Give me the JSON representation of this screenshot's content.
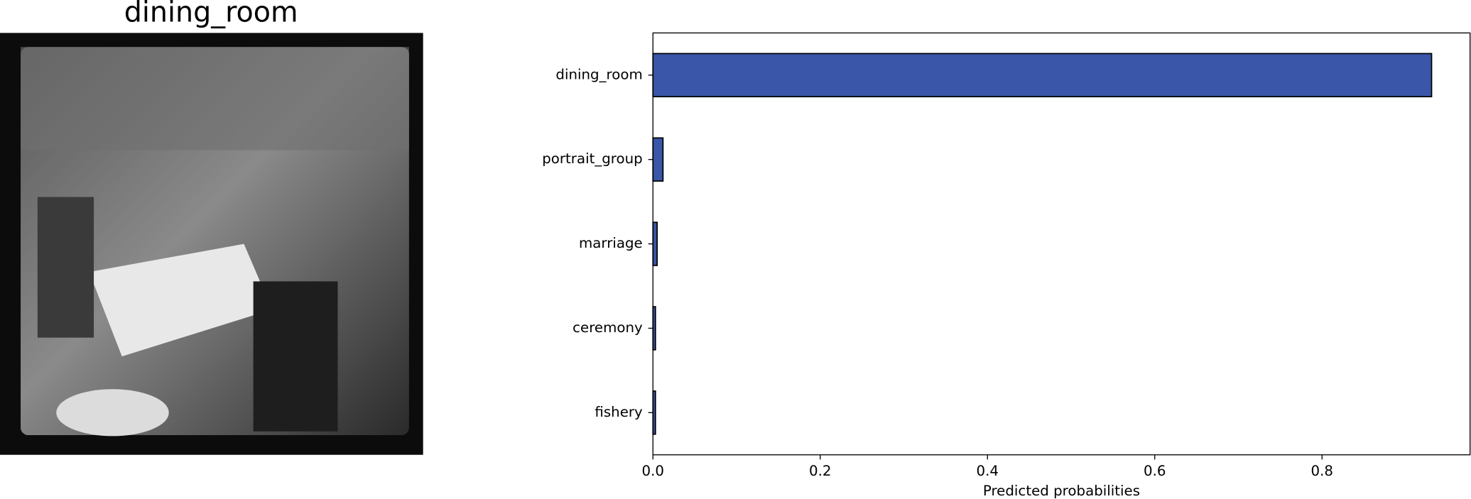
{
  "image_panel": {
    "title": "dining_room"
  },
  "chart_data": {
    "type": "barh",
    "categories": [
      "dining_room",
      "portrait_group",
      "marriage",
      "ceremony",
      "fishery"
    ],
    "values": [
      0.931,
      0.012,
      0.005,
      0.003,
      0.003
    ],
    "color": "#3a56a8",
    "edgecolor": "#000000",
    "xlabel": "Predicted probabilities",
    "xlim": [
      0,
      0.977
    ],
    "xticks": [
      {
        "value": 0,
        "label": "0.0"
      },
      0.2,
      0.4,
      0.6,
      0.8
    ],
    "grid": false
  }
}
